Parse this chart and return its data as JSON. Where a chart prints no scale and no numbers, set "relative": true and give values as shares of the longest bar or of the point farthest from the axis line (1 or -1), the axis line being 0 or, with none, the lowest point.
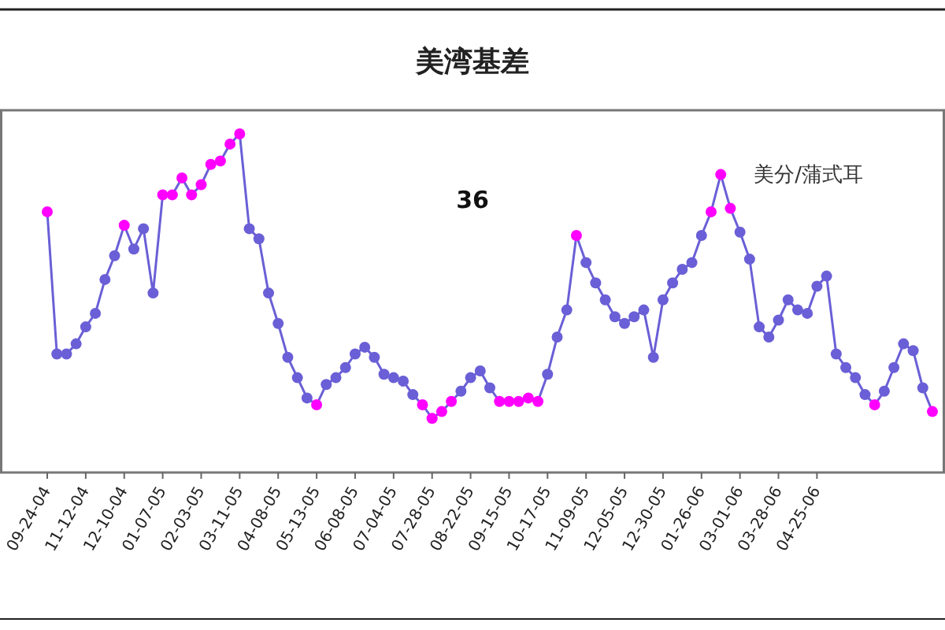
{
  "chart_data": {
    "type": "line",
    "title": "美湾基差",
    "ylabel": "美分/蒲式耳",
    "annotations": [
      "36"
    ],
    "relative": true,
    "marker": "circle",
    "line_style": "solid",
    "categories": [
      "09-24-04",
      null,
      null,
      null,
      "11-12-04",
      null,
      null,
      null,
      "12-10-04",
      null,
      null,
      null,
      "01-07-05",
      null,
      null,
      null,
      "02-03-05",
      null,
      null,
      null,
      "03-11-05",
      null,
      null,
      null,
      "04-08-05",
      null,
      null,
      null,
      "05-13-05",
      null,
      null,
      null,
      "06-08-05",
      null,
      null,
      null,
      "07-04-05",
      null,
      null,
      null,
      "07-28-05",
      null,
      null,
      null,
      "08-22-05",
      null,
      null,
      null,
      "09-15-05",
      null,
      null,
      null,
      "10-17-05",
      null,
      null,
      null,
      "11-09-05",
      null,
      null,
      null,
      "12-05-05",
      null,
      null,
      null,
      "12-30-05",
      null,
      null,
      null,
      "01-26-06",
      null,
      null,
      null,
      "03-01-06",
      null,
      null,
      null,
      "03-28-06",
      null,
      null,
      null,
      "04-25-06",
      null,
      null,
      null,
      null,
      null,
      null,
      null,
      null,
      null,
      null,
      null,
      null
    ],
    "series": [
      {
        "color": "#6a5fd6",
        "values": [
          0.77,
          0.35,
          0.35,
          0.38,
          0.43,
          0.47,
          0.57,
          0.64,
          0.73,
          0.66,
          0.72,
          0.53,
          0.82,
          0.82,
          0.87,
          0.82,
          0.85,
          0.91,
          0.92,
          0.97,
          1.0,
          0.72,
          0.69,
          0.53,
          0.44,
          0.34,
          0.28,
          0.22,
          0.2,
          0.26,
          0.28,
          0.31,
          0.35,
          0.37,
          0.34,
          0.29,
          0.28,
          0.27,
          0.23,
          0.2,
          0.16,
          0.18,
          0.21,
          0.24,
          0.28,
          0.3,
          0.25,
          0.21,
          0.21,
          0.21,
          0.22,
          0.21,
          0.29,
          0.4,
          0.48,
          0.7,
          0.62,
          0.56,
          0.51,
          0.46,
          0.44,
          0.46,
          0.48,
          0.34,
          0.51,
          0.56,
          0.6,
          0.62,
          0.7,
          0.77,
          0.88,
          0.78,
          0.71,
          0.63,
          0.43,
          0.4,
          0.45,
          0.51,
          0.48,
          0.47,
          0.55,
          0.58,
          0.35,
          0.31,
          0.28,
          0.23,
          0.2,
          0.24,
          0.31,
          0.38,
          0.36,
          0.25,
          0.18
        ],
        "colors": [
          "#ff00ff",
          "#6a5fd6",
          "#6a5fd6",
          "#6a5fd6",
          "#6a5fd6",
          "#6a5fd6",
          "#6a5fd6",
          "#6a5fd6",
          "#ff00ff",
          "#6a5fd6",
          "#6a5fd6",
          "#6a5fd6",
          "#ff00ff",
          "#ff00ff",
          "#ff00ff",
          "#ff00ff",
          "#ff00ff",
          "#ff00ff",
          "#ff00ff",
          "#ff00ff",
          "#ff00ff",
          "#6a5fd6",
          "#6a5fd6",
          "#6a5fd6",
          "#6a5fd6",
          "#6a5fd6",
          "#6a5fd6",
          "#6a5fd6",
          "#ff00ff",
          "#6a5fd6",
          "#6a5fd6",
          "#6a5fd6",
          "#6a5fd6",
          "#6a5fd6",
          "#6a5fd6",
          "#6a5fd6",
          "#6a5fd6",
          "#6a5fd6",
          "#6a5fd6",
          "#ff00ff",
          "#ff00ff",
          "#ff00ff",
          "#ff00ff",
          "#6a5fd6",
          "#6a5fd6",
          "#6a5fd6",
          "#6a5fd6",
          "#ff00ff",
          "#ff00ff",
          "#ff00ff",
          "#ff00ff",
          "#ff00ff",
          "#6a5fd6",
          "#6a5fd6",
          "#6a5fd6",
          "#ff00ff",
          "#6a5fd6",
          "#6a5fd6",
          "#6a5fd6",
          "#6a5fd6",
          "#6a5fd6",
          "#6a5fd6",
          "#6a5fd6",
          "#6a5fd6",
          "#6a5fd6",
          "#6a5fd6",
          "#6a5fd6",
          "#6a5fd6",
          "#6a5fd6",
          "#ff00ff",
          "#ff00ff",
          "#ff00ff",
          "#6a5fd6",
          "#6a5fd6",
          "#6a5fd6",
          "#6a5fd6",
          "#6a5fd6",
          "#6a5fd6",
          "#6a5fd6",
          "#6a5fd6",
          "#6a5fd6",
          "#6a5fd6",
          "#6a5fd6",
          "#6a5fd6",
          "#6a5fd6",
          "#6a5fd6",
          "#ff00ff",
          "#6a5fd6",
          "#6a5fd6",
          "#6a5fd6",
          "#6a5fd6",
          "#6a5fd6",
          "#ff00ff"
        ]
      }
    ]
  }
}
